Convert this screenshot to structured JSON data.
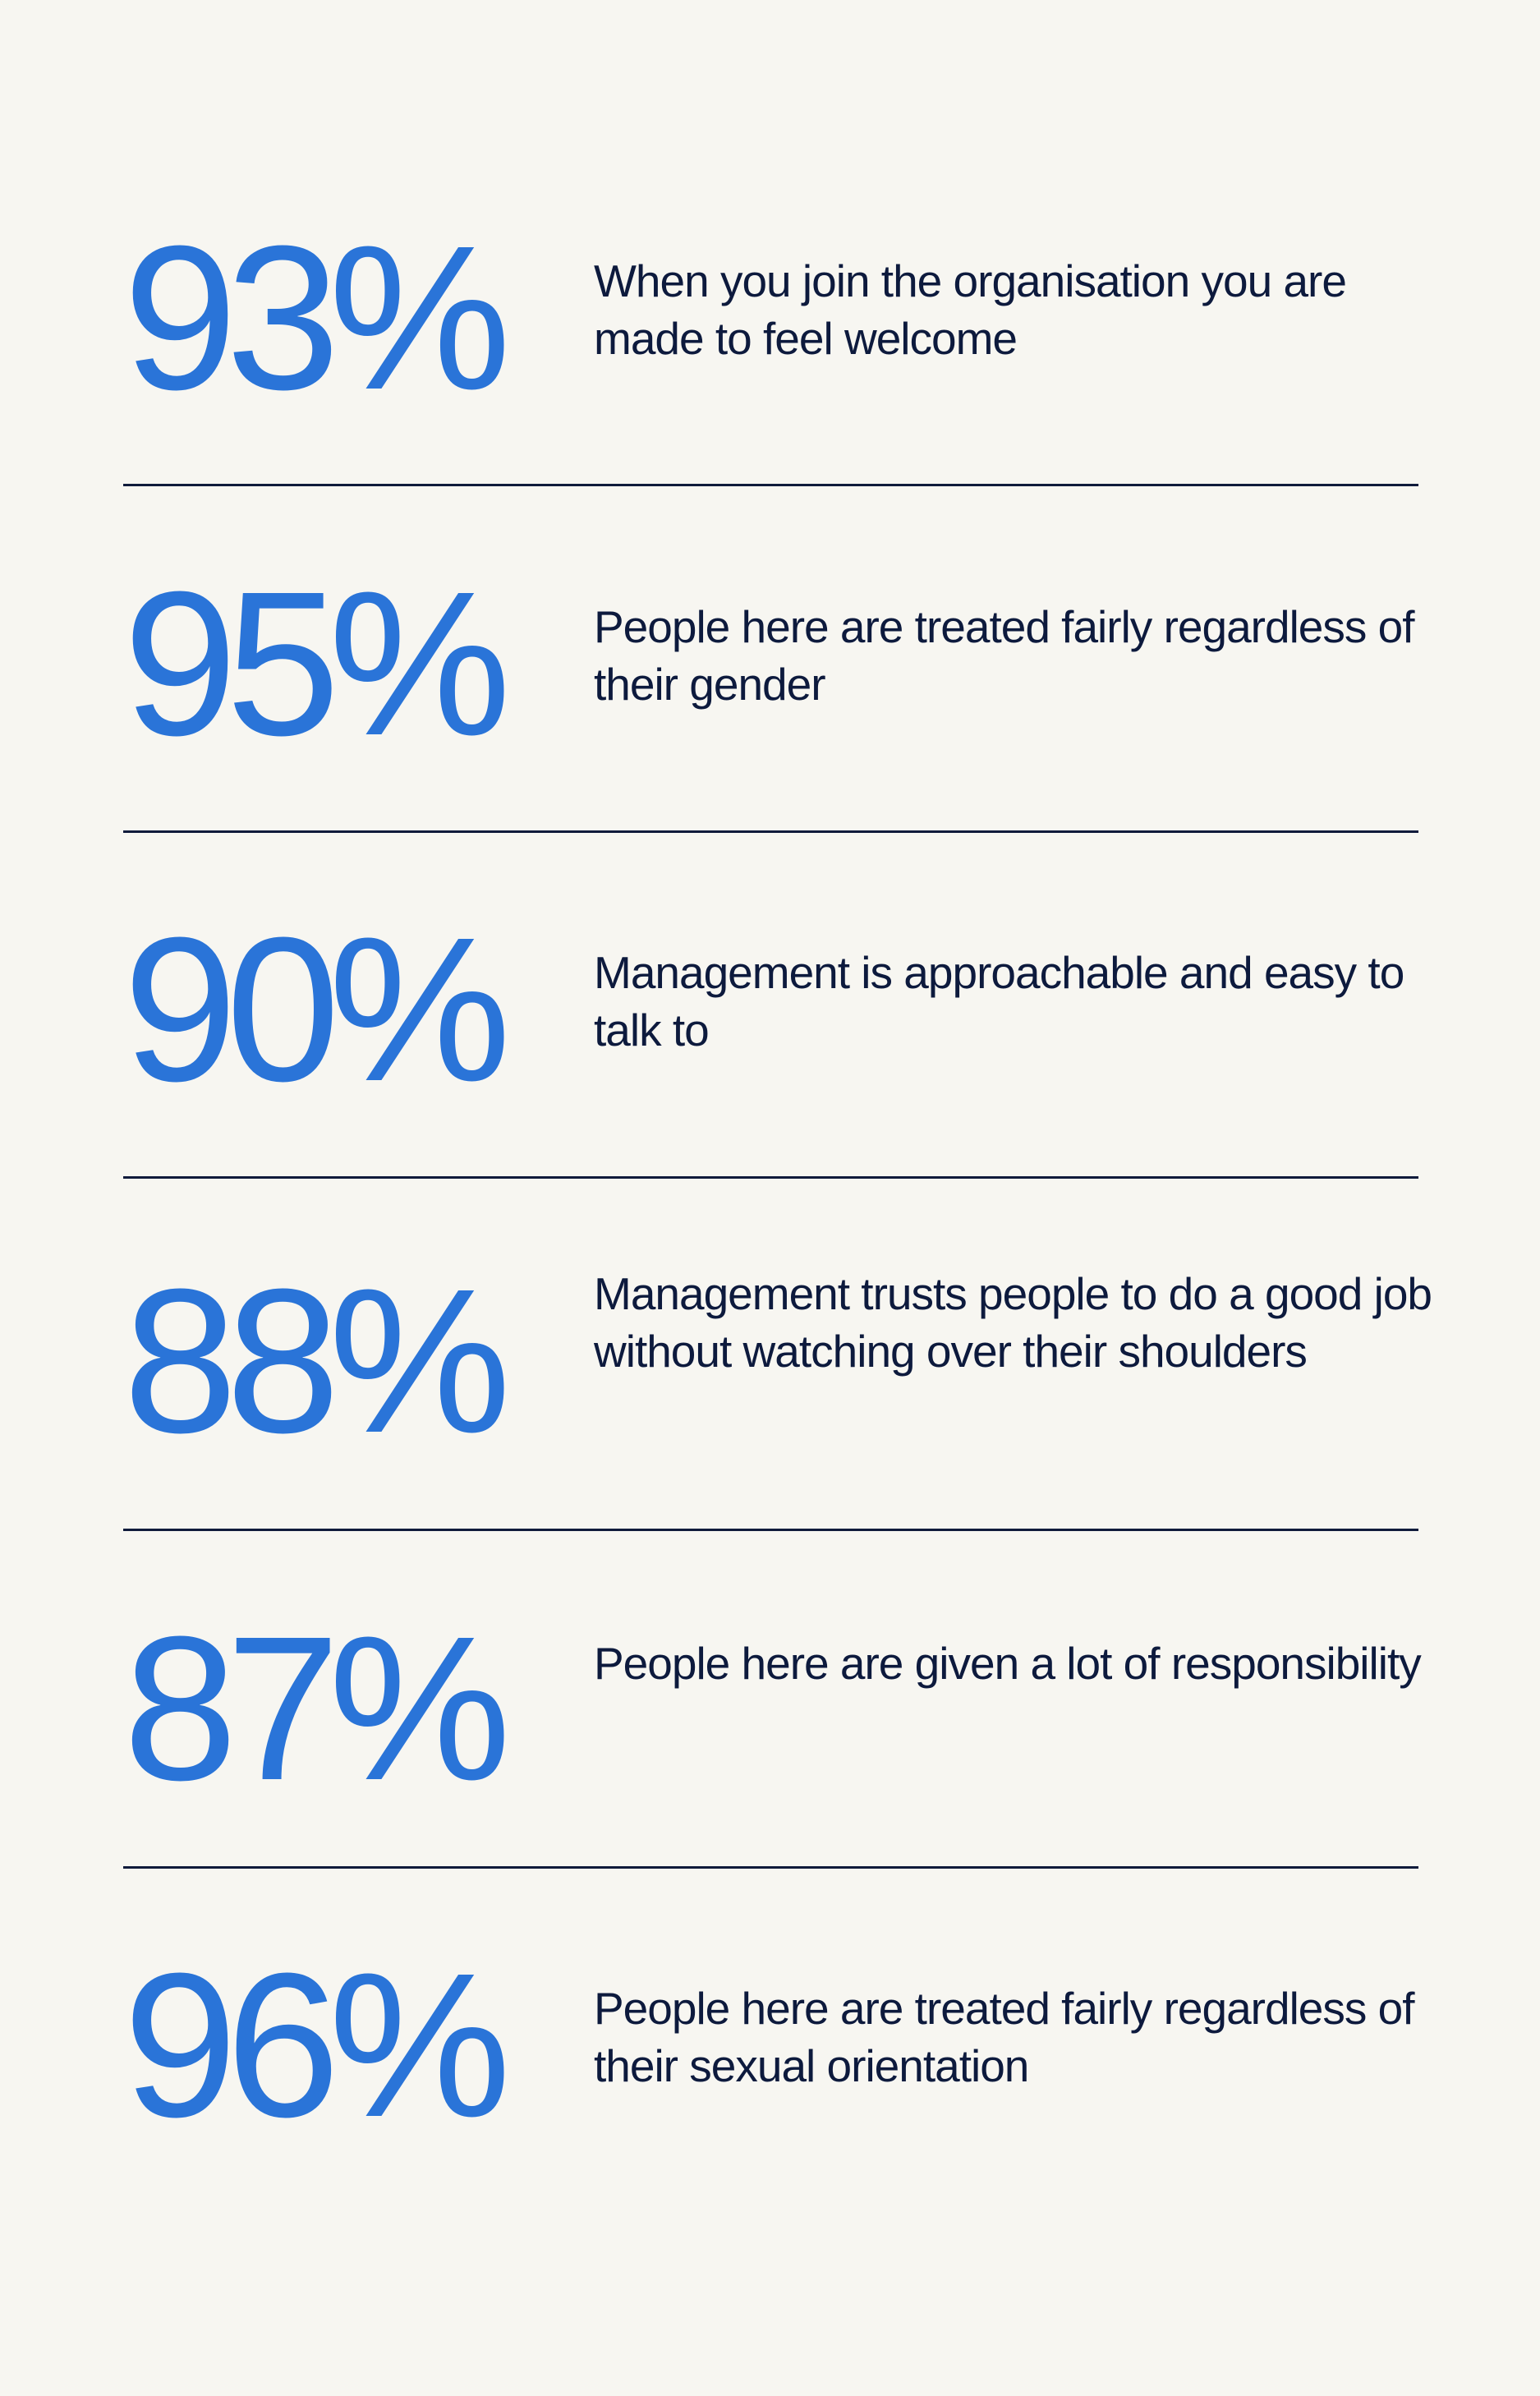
{
  "stats": [
    {
      "value": "93%",
      "text": "When you join the organisation you are made to feel welcome"
    },
    {
      "value": "95%",
      "text": "People here are treated fairly regardless of their gender"
    },
    {
      "value": "90%",
      "text": "Management is approachable and easy to talk to"
    },
    {
      "value": "88%",
      "text": "Management trusts people to do a good job without watching over their shoulders"
    },
    {
      "value": "87%",
      "text": "People here are given a lot of responsibility"
    },
    {
      "value": "96%",
      "text": "People here are treated fairly regardless of their sexual orientation"
    }
  ],
  "colors": {
    "background": "#f7f6f1",
    "accent": "#2a74d8",
    "text": "#0d1a3d",
    "divider": "#101b3b"
  }
}
